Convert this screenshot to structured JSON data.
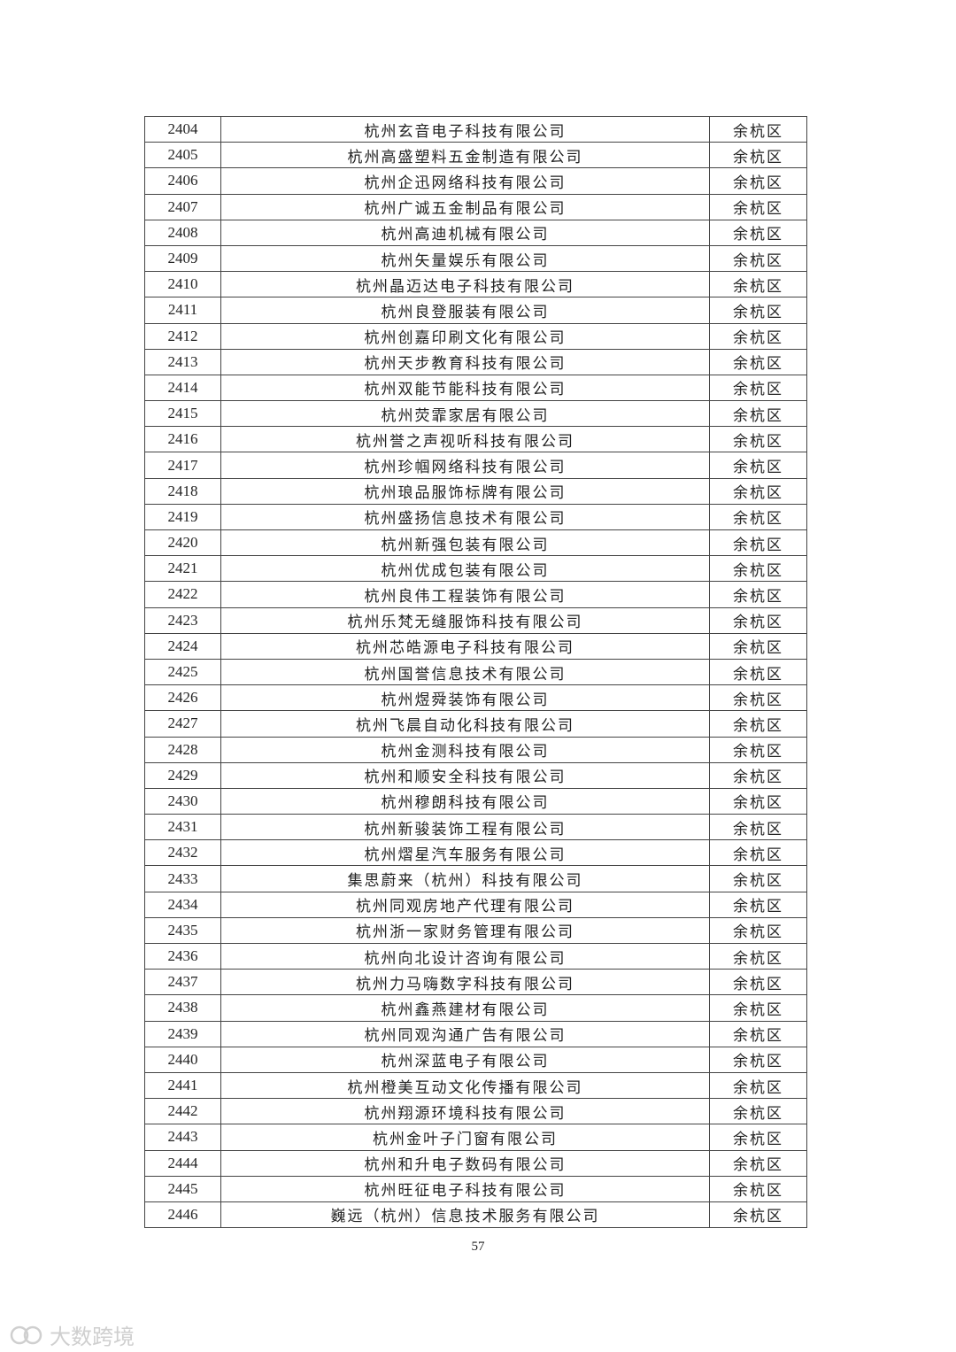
{
  "table": {
    "rows": [
      [
        "2404",
        "杭州玄音电子科技有限公司",
        "余杭区"
      ],
      [
        "2405",
        "杭州高盛塑料五金制造有限公司",
        "余杭区"
      ],
      [
        "2406",
        "杭州企迅网络科技有限公司",
        "余杭区"
      ],
      [
        "2407",
        "杭州广诚五金制品有限公司",
        "余杭区"
      ],
      [
        "2408",
        "杭州高迪机械有限公司",
        "余杭区"
      ],
      [
        "2409",
        "杭州矢量娱乐有限公司",
        "余杭区"
      ],
      [
        "2410",
        "杭州晶迈达电子科技有限公司",
        "余杭区"
      ],
      [
        "2411",
        "杭州良登服装有限公司",
        "余杭区"
      ],
      [
        "2412",
        "杭州创嘉印刷文化有限公司",
        "余杭区"
      ],
      [
        "2413",
        "杭州天步教育科技有限公司",
        "余杭区"
      ],
      [
        "2414",
        "杭州双能节能科技有限公司",
        "余杭区"
      ],
      [
        "2415",
        "杭州荧霏家居有限公司",
        "余杭区"
      ],
      [
        "2416",
        "杭州誉之声视听科技有限公司",
        "余杭区"
      ],
      [
        "2417",
        "杭州珍帼网络科技有限公司",
        "余杭区"
      ],
      [
        "2418",
        "杭州琅品服饰标牌有限公司",
        "余杭区"
      ],
      [
        "2419",
        "杭州盛扬信息技术有限公司",
        "余杭区"
      ],
      [
        "2420",
        "杭州新强包装有限公司",
        "余杭区"
      ],
      [
        "2421",
        "杭州优成包装有限公司",
        "余杭区"
      ],
      [
        "2422",
        "杭州良伟工程装饰有限公司",
        "余杭区"
      ],
      [
        "2423",
        "杭州乐梵无缝服饰科技有限公司",
        "余杭区"
      ],
      [
        "2424",
        "杭州芯皓源电子科技有限公司",
        "余杭区"
      ],
      [
        "2425",
        "杭州国誉信息技术有限公司",
        "余杭区"
      ],
      [
        "2426",
        "杭州煜舜装饰有限公司",
        "余杭区"
      ],
      [
        "2427",
        "杭州飞晨自动化科技有限公司",
        "余杭区"
      ],
      [
        "2428",
        "杭州金测科技有限公司",
        "余杭区"
      ],
      [
        "2429",
        "杭州和顺安全科技有限公司",
        "余杭区"
      ],
      [
        "2430",
        "杭州穆朗科技有限公司",
        "余杭区"
      ],
      [
        "2431",
        "杭州新骏装饰工程有限公司",
        "余杭区"
      ],
      [
        "2432",
        "杭州熠星汽车服务有限公司",
        "余杭区"
      ],
      [
        "2433",
        "集思蔚来（杭州）科技有限公司",
        "余杭区"
      ],
      [
        "2434",
        "杭州同观房地产代理有限公司",
        "余杭区"
      ],
      [
        "2435",
        "杭州浙一家财务管理有限公司",
        "余杭区"
      ],
      [
        "2436",
        "杭州向北设计咨询有限公司",
        "余杭区"
      ],
      [
        "2437",
        "杭州力马嗨数字科技有限公司",
        "余杭区"
      ],
      [
        "2438",
        "杭州鑫燕建材有限公司",
        "余杭区"
      ],
      [
        "2439",
        "杭州同观沟通广告有限公司",
        "余杭区"
      ],
      [
        "2440",
        "杭州深蓝电子有限公司",
        "余杭区"
      ],
      [
        "2441",
        "杭州橙美互动文化传播有限公司",
        "余杭区"
      ],
      [
        "2442",
        "杭州翔源环境科技有限公司",
        "余杭区"
      ],
      [
        "2443",
        "杭州金叶子门窗有限公司",
        "余杭区"
      ],
      [
        "2444",
        "杭州和升电子数码有限公司",
        "余杭区"
      ],
      [
        "2445",
        "杭州旺征电子科技有限公司",
        "余杭区"
      ],
      [
        "2446",
        "巍远（杭州）信息技术服务有限公司",
        "余杭区"
      ]
    ]
  },
  "footer": {
    "page_number": "57"
  },
  "watermark": {
    "text": "大数跨境"
  }
}
